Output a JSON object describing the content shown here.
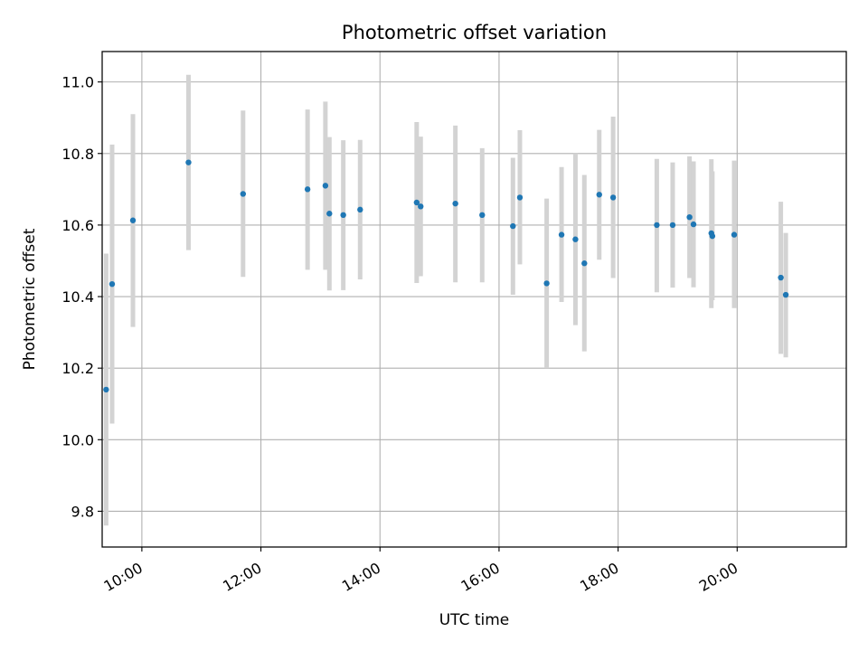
{
  "chart_data": {
    "type": "scatter",
    "title": "Photometric offset variation",
    "xlabel": "UTC time",
    "ylabel": "Photometric offset",
    "xlim": [
      "09:20",
      "21:50"
    ],
    "ylim": [
      9.7,
      11.085
    ],
    "xticks": [
      "10:00",
      "12:00",
      "14:00",
      "16:00",
      "18:00",
      "20:00"
    ],
    "yticks": [
      9.8,
      10.0,
      10.2,
      10.4,
      10.6,
      10.8,
      11.0
    ],
    "grid": true,
    "legend": "none",
    "colors": {
      "marker": "#1f77b4",
      "errorbar": "#d3d3d3",
      "grid": "#b0b0b0"
    },
    "points": [
      {
        "x": "09:24",
        "y": 10.14,
        "low": 9.76,
        "high": 10.52
      },
      {
        "x": "09:30",
        "y": 10.435,
        "low": 10.045,
        "high": 10.825
      },
      {
        "x": "09:51",
        "y": 10.613,
        "low": 10.315,
        "high": 10.91
      },
      {
        "x": "10:47",
        "y": 10.775,
        "low": 10.53,
        "high": 11.02
      },
      {
        "x": "11:42",
        "y": 10.687,
        "low": 10.455,
        "high": 10.92
      },
      {
        "x": "12:47",
        "y": 10.7,
        "low": 10.475,
        "high": 10.923
      },
      {
        "x": "13:05",
        "y": 10.71,
        "low": 10.475,
        "high": 10.945
      },
      {
        "x": "13:09",
        "y": 10.632,
        "low": 10.417,
        "high": 10.846
      },
      {
        "x": "13:23",
        "y": 10.628,
        "low": 10.418,
        "high": 10.837
      },
      {
        "x": "13:40",
        "y": 10.643,
        "low": 10.448,
        "high": 10.838
      },
      {
        "x": "14:37",
        "y": 10.663,
        "low": 10.438,
        "high": 10.888
      },
      {
        "x": "14:41",
        "y": 10.652,
        "low": 10.457,
        "high": 10.847
      },
      {
        "x": "15:16",
        "y": 10.66,
        "low": 10.44,
        "high": 10.878
      },
      {
        "x": "15:43",
        "y": 10.628,
        "low": 10.44,
        "high": 10.815
      },
      {
        "x": "16:14",
        "y": 10.597,
        "low": 10.405,
        "high": 10.788
      },
      {
        "x": "16:21",
        "y": 10.677,
        "low": 10.49,
        "high": 10.865
      },
      {
        "x": "16:48",
        "y": 10.437,
        "low": 10.2,
        "high": 10.674
      },
      {
        "x": "17:03",
        "y": 10.573,
        "low": 10.385,
        "high": 10.762
      },
      {
        "x": "17:17",
        "y": 10.56,
        "low": 10.32,
        "high": 10.8
      },
      {
        "x": "17:26",
        "y": 10.493,
        "low": 10.247,
        "high": 10.74
      },
      {
        "x": "17:41",
        "y": 10.685,
        "low": 10.503,
        "high": 10.866
      },
      {
        "x": "17:55",
        "y": 10.677,
        "low": 10.452,
        "high": 10.903
      },
      {
        "x": "18:39",
        "y": 10.6,
        "low": 10.412,
        "high": 10.785
      },
      {
        "x": "18:55",
        "y": 10.6,
        "low": 10.425,
        "high": 10.775
      },
      {
        "x": "19:12",
        "y": 10.622,
        "low": 10.452,
        "high": 10.792
      },
      {
        "x": "19:16",
        "y": 10.602,
        "low": 10.426,
        "high": 10.778
      },
      {
        "x": "19:34",
        "y": 10.577,
        "low": 10.368,
        "high": 10.784
      },
      {
        "x": "19:35",
        "y": 10.569,
        "low": 10.39,
        "high": 10.75
      },
      {
        "x": "19:57",
        "y": 10.573,
        "low": 10.368,
        "high": 10.78
      },
      {
        "x": "20:44",
        "y": 10.453,
        "low": 10.24,
        "high": 10.665
      },
      {
        "x": "20:49",
        "y": 10.405,
        "low": 10.23,
        "high": 10.578
      }
    ]
  }
}
